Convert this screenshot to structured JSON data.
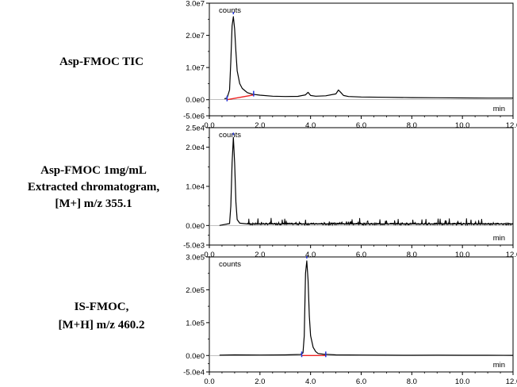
{
  "chart_data": [
    {
      "type": "line",
      "label": "Asp-FMOC TIC",
      "y_unit": "counts",
      "x_unit": "min",
      "xlim": [
        0,
        12
      ],
      "ylim": [
        -5000000,
        30000000
      ],
      "y_ticks": [
        30000000,
        20000000,
        10000000,
        0,
        -5000000
      ],
      "y_tick_labels": [
        "3.0e7",
        "2.0e7",
        "1.0e7",
        "0.0e0",
        "-5.0e6"
      ],
      "x_ticks": [
        0,
        2,
        4,
        6,
        8,
        10,
        12
      ],
      "x_tick_labels": [
        "0.0",
        "2.0",
        "4.0",
        "6.0",
        "8.0",
        "10.0",
        "12.0"
      ],
      "series": [
        {
          "x": [
            0.6,
            0.7,
            0.8,
            0.85,
            0.9,
            0.95,
            1.0,
            1.05,
            1.1,
            1.2,
            1.3,
            1.5,
            1.7,
            2.0,
            2.5,
            3.0,
            3.5,
            3.8,
            3.9,
            4.0,
            4.2,
            4.6,
            5.0,
            5.1,
            5.2,
            5.3,
            5.5,
            6.0,
            7.0,
            8.0,
            9.0,
            10.0,
            11.0,
            12.0
          ],
          "y": [
            300000,
            500000,
            3000000,
            12000000,
            23000000,
            25800000,
            22000000,
            15000000,
            9000000,
            5000000,
            3500000,
            2200000,
            1700000,
            1400000,
            1100000,
            1000000,
            1050000,
            1500000,
            2300000,
            1300000,
            1100000,
            1200000,
            1800000,
            3000000,
            2200000,
            1300000,
            1000000,
            850000,
            750000,
            650000,
            600000,
            550000,
            500000,
            500000
          ]
        }
      ],
      "markers": [
        {
          "x": 0.7,
          "color": "#2233dd"
        },
        {
          "x": 0.95,
          "color": "#2233dd"
        },
        {
          "x": 1.75,
          "color": "#2233dd"
        }
      ],
      "baseline": {
        "x": [
          0.7,
          1.75
        ],
        "y": [
          0,
          1500000
        ],
        "color": "#ee2222"
      }
    },
    {
      "type": "line",
      "label": "Asp-FMOC 1mg/mL Extracted chromatogram, [M+] m/z 355.1",
      "y_unit": "counts",
      "x_unit": "min",
      "xlim": [
        0,
        12
      ],
      "ylim": [
        -5000,
        25000
      ],
      "y_ticks": [
        25000,
        20000,
        10000,
        0,
        -5000
      ],
      "y_tick_labels": [
        "2.5e4",
        "2.0e4",
        "1.0e4",
        "0.0e0",
        "-5.0e3"
      ],
      "x_ticks": [
        0,
        2,
        4,
        6,
        8,
        10,
        12
      ],
      "x_tick_labels": [
        "0.0",
        "2.0",
        "4.0",
        "6.0",
        "8.0",
        "10.0",
        "12.0"
      ],
      "series": [
        {
          "x": [
            0.4,
            0.8,
            0.85,
            0.9,
            0.95,
            1.0,
            1.05,
            1.1,
            1.2,
            1.5,
            2.0,
            12.0
          ],
          "y": [
            0,
            500,
            5000,
            16000,
            22500,
            16000,
            6000,
            1500,
            600,
            400,
            400,
            400
          ]
        }
      ],
      "markers": [
        {
          "x": 0.95,
          "color": "#2233dd"
        }
      ]
    },
    {
      "type": "line",
      "label": "IS-FMOC, [M+H] m/z 460.2",
      "y_unit": "counts",
      "x_unit": "min",
      "xlim": [
        0,
        12
      ],
      "ylim": [
        -50000,
        300000
      ],
      "y_ticks": [
        300000,
        200000,
        100000,
        0,
        -50000
      ],
      "y_tick_labels": [
        "3.0e5",
        "2.0e5",
        "1.0e5",
        "0.0e0",
        "-5.0e4"
      ],
      "x_ticks": [
        0,
        2,
        4,
        6,
        8,
        10,
        12
      ],
      "x_tick_labels": [
        "0.0",
        "2.0",
        "4.0",
        "6.0",
        "8.0",
        "10.0",
        "12.0"
      ],
      "series": [
        {
          "x": [
            0.4,
            1.0,
            2.0,
            3.0,
            3.6,
            3.7,
            3.75,
            3.8,
            3.85,
            3.9,
            3.95,
            4.0,
            4.1,
            4.2,
            4.3,
            4.5,
            4.7,
            5.0,
            6.0,
            7.0,
            8.0,
            9.0,
            10.0,
            11.0,
            12.0
          ],
          "y": [
            1000,
            2000,
            1500,
            2000,
            3000,
            8000,
            60000,
            250000,
            288000,
            230000,
            120000,
            60000,
            25000,
            12000,
            6000,
            4000,
            3000,
            2000,
            1500,
            1000,
            800,
            1000,
            800,
            600,
            500
          ]
        }
      ],
      "markers": [
        {
          "x": 3.65,
          "color": "#2233dd"
        },
        {
          "x": 3.85,
          "color": "#2233dd"
        },
        {
          "x": 4.6,
          "color": "#2233dd"
        }
      ],
      "baseline": {
        "x": [
          3.65,
          4.6
        ],
        "y": [
          0,
          0
        ],
        "color": "#ee2222"
      }
    }
  ]
}
